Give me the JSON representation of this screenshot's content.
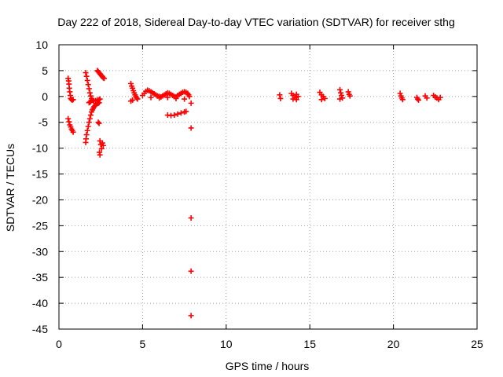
{
  "chart_data": {
    "type": "scatter",
    "title": "Day 222 of 2018, Sidereal Day-to-day VTEC variation (SDTVAR) for receiver sthg",
    "xlabel": "GPS time / hours",
    "ylabel": "SDTVAR / TECUs",
    "xlim": [
      0,
      25
    ],
    "ylim": [
      -45,
      10
    ],
    "xticks": [
      0,
      5,
      10,
      15,
      20,
      25
    ],
    "yticks": [
      10,
      5,
      0,
      -5,
      -10,
      -15,
      -20,
      -25,
      -30,
      -35,
      -40,
      -45
    ],
    "grid": true,
    "marker": "+",
    "marker_color": "#ff0000",
    "series": [
      {
        "name": "SDTVAR",
        "points": [
          [
            0.55,
            3.5
          ],
          [
            0.58,
            3.0
          ],
          [
            0.6,
            2.4
          ],
          [
            0.62,
            1.6
          ],
          [
            0.65,
            0.9
          ],
          [
            0.68,
            0.2
          ],
          [
            0.7,
            -0.4
          ],
          [
            0.75,
            -0.6
          ],
          [
            0.8,
            -0.7
          ],
          [
            0.85,
            -0.6
          ],
          [
            0.55,
            -4.3
          ],
          [
            0.6,
            -4.9
          ],
          [
            0.65,
            -5.5
          ],
          [
            0.7,
            -5.9
          ],
          [
            0.75,
            -6.3
          ],
          [
            0.8,
            -6.6
          ],
          [
            0.85,
            -6.9
          ],
          [
            1.6,
            4.6
          ],
          [
            1.65,
            3.9
          ],
          [
            1.7,
            3.1
          ],
          [
            1.75,
            2.3
          ],
          [
            1.8,
            1.5
          ],
          [
            1.85,
            0.7
          ],
          [
            1.9,
            0.1
          ],
          [
            1.95,
            -0.4
          ],
          [
            2.0,
            -0.7
          ],
          [
            2.05,
            -0.8
          ],
          [
            2.1,
            -0.9
          ],
          [
            1.8,
            -1.2
          ],
          [
            1.85,
            -1.1
          ],
          [
            1.9,
            -1.0
          ],
          [
            2.2,
            -0.8
          ],
          [
            2.3,
            -0.7
          ],
          [
            2.4,
            -0.6
          ],
          [
            2.45,
            -0.5
          ],
          [
            1.6,
            -8.9
          ],
          [
            1.62,
            -8.2
          ],
          [
            1.65,
            -7.4
          ],
          [
            1.7,
            -6.6
          ],
          [
            1.75,
            -5.8
          ],
          [
            1.8,
            -5.0
          ],
          [
            1.85,
            -4.3
          ],
          [
            1.9,
            -3.6
          ],
          [
            1.95,
            -3.0
          ],
          [
            2.0,
            -2.6
          ],
          [
            2.05,
            -2.3
          ],
          [
            2.1,
            -2.0
          ],
          [
            2.15,
            -1.8
          ],
          [
            2.2,
            -1.6
          ],
          [
            2.3,
            -1.4
          ],
          [
            2.35,
            -1.3
          ],
          [
            2.4,
            -1.2
          ],
          [
            2.35,
            -5.0
          ],
          [
            2.4,
            -5.2
          ],
          [
            2.45,
            -8.6
          ],
          [
            2.5,
            -9.3
          ],
          [
            2.55,
            -10.1
          ],
          [
            2.42,
            -10.8
          ],
          [
            2.45,
            -11.3
          ],
          [
            2.6,
            -9.0
          ],
          [
            2.65,
            -9.5
          ],
          [
            2.3,
            5.0
          ],
          [
            2.35,
            4.8
          ],
          [
            2.4,
            4.6
          ],
          [
            2.45,
            4.4
          ],
          [
            2.5,
            4.2
          ],
          [
            2.55,
            4.0
          ],
          [
            2.6,
            3.8
          ],
          [
            2.65,
            3.6
          ],
          [
            2.7,
            3.5
          ],
          [
            4.3,
            2.5
          ],
          [
            4.35,
            2.0
          ],
          [
            4.4,
            1.6
          ],
          [
            4.45,
            1.1
          ],
          [
            4.5,
            0.7
          ],
          [
            4.55,
            0.3
          ],
          [
            4.6,
            0.0
          ],
          [
            4.65,
            -0.3
          ],
          [
            4.7,
            -0.5
          ],
          [
            4.4,
            -0.7
          ],
          [
            4.3,
            -0.9
          ],
          [
            5.0,
            0.2
          ],
          [
            5.1,
            0.6
          ],
          [
            5.2,
            1.0
          ],
          [
            5.3,
            1.2
          ],
          [
            5.4,
            1.1
          ],
          [
            5.5,
            0.9
          ],
          [
            5.6,
            0.7
          ],
          [
            5.7,
            0.5
          ],
          [
            5.8,
            0.3
          ],
          [
            5.9,
            0.1
          ],
          [
            6.0,
            0.0
          ],
          [
            6.1,
            -0.1
          ],
          [
            6.2,
            0.1
          ],
          [
            6.3,
            0.3
          ],
          [
            6.4,
            0.5
          ],
          [
            6.5,
            0.7
          ],
          [
            6.6,
            0.6
          ],
          [
            6.7,
            0.4
          ],
          [
            6.8,
            0.2
          ],
          [
            6.9,
            0.0
          ],
          [
            7.0,
            -0.1
          ],
          [
            7.1,
            0.2
          ],
          [
            7.2,
            0.4
          ],
          [
            7.3,
            0.6
          ],
          [
            7.4,
            0.8
          ],
          [
            7.5,
            0.9
          ],
          [
            7.6,
            0.8
          ],
          [
            7.7,
            0.6
          ],
          [
            7.75,
            0.3
          ],
          [
            7.8,
            0.0
          ],
          [
            5.5,
            -0.2
          ],
          [
            6.0,
            -0.3
          ],
          [
            6.5,
            -0.2
          ],
          [
            7.0,
            -0.4
          ],
          [
            7.5,
            -0.5
          ],
          [
            6.5,
            -3.6
          ],
          [
            6.7,
            -3.7
          ],
          [
            6.9,
            -3.6
          ],
          [
            7.1,
            -3.4
          ],
          [
            7.3,
            -3.2
          ],
          [
            7.5,
            -3.0
          ],
          [
            7.6,
            -2.9
          ],
          [
            7.9,
            -1.3
          ],
          [
            7.9,
            -6.1
          ],
          [
            7.9,
            -23.5
          ],
          [
            7.9,
            -33.8
          ],
          [
            7.9,
            -42.4
          ],
          [
            13.2,
            0.3
          ],
          [
            13.25,
            -0.4
          ],
          [
            13.9,
            0.6
          ],
          [
            14.0,
            0.2
          ],
          [
            14.1,
            -0.2
          ],
          [
            14.2,
            0.4
          ],
          [
            14.3,
            0.0
          ],
          [
            14.0,
            -0.5
          ],
          [
            14.2,
            -0.6
          ],
          [
            15.6,
            0.8
          ],
          [
            15.7,
            0.3
          ],
          [
            15.8,
            0.0
          ],
          [
            15.9,
            -0.4
          ],
          [
            15.7,
            -0.6
          ],
          [
            16.8,
            1.3
          ],
          [
            16.85,
            0.7
          ],
          [
            16.9,
            0.2
          ],
          [
            16.95,
            -0.3
          ],
          [
            16.8,
            -0.5
          ],
          [
            17.3,
            0.9
          ],
          [
            17.35,
            0.4
          ],
          [
            17.4,
            0.1
          ],
          [
            20.4,
            0.6
          ],
          [
            20.45,
            0.1
          ],
          [
            20.5,
            -0.3
          ],
          [
            20.55,
            -0.6
          ],
          [
            21.4,
            -0.2
          ],
          [
            21.45,
            -0.5
          ],
          [
            21.5,
            -0.7
          ],
          [
            21.9,
            0.1
          ],
          [
            22.0,
            -0.3
          ],
          [
            22.4,
            0.2
          ],
          [
            22.5,
            -0.1
          ],
          [
            22.6,
            -0.3
          ],
          [
            22.7,
            -0.6
          ],
          [
            22.8,
            -0.2
          ]
        ]
      }
    ]
  }
}
